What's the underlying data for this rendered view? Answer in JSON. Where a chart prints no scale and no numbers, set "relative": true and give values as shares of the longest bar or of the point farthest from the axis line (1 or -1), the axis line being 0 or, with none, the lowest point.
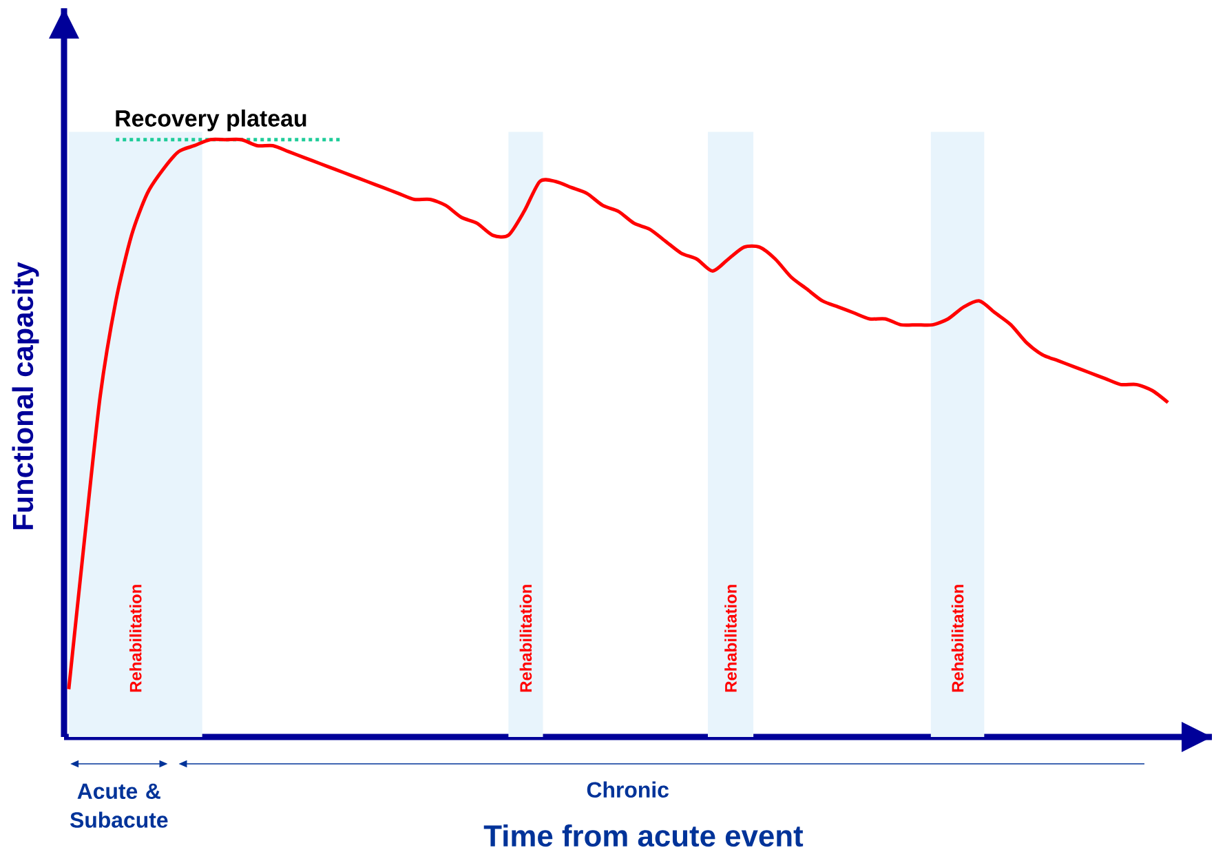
{
  "chart_data": {
    "type": "line",
    "relative": true,
    "xlabel": "Time from acute event",
    "ylabel": "Functional capacity",
    "categories": [
      null,
      null,
      null,
      null,
      null,
      null,
      null,
      null,
      null,
      null,
      null,
      null,
      null,
      null,
      null,
      null,
      null,
      null,
      null,
      null,
      null,
      null,
      null,
      null,
      null,
      null,
      null,
      null,
      null,
      null,
      null,
      null,
      null,
      null,
      null,
      null,
      null,
      null,
      null,
      null,
      null,
      null,
      null,
      null,
      null,
      null,
      null,
      null,
      null,
      null,
      null,
      null,
      null,
      null,
      null,
      null,
      null,
      null,
      null,
      null,
      null,
      null,
      null,
      null,
      null,
      null,
      null,
      null,
      null,
      null,
      null
    ],
    "series": [
      {
        "color": "#ff0000",
        "values": [
          0.08,
          0.33,
          0.57,
          0.73,
          0.84,
          0.91,
          0.95,
          0.98,
          0.99,
          1.0,
          1.0,
          1.0,
          0.99,
          0.99,
          0.98,
          0.97,
          0.96,
          0.95,
          0.94,
          0.93,
          0.92,
          0.91,
          0.9,
          0.9,
          0.89,
          0.87,
          0.86,
          0.84,
          0.84,
          0.88,
          0.93,
          0.93,
          0.92,
          0.91,
          0.89,
          0.88,
          0.86,
          0.85,
          0.83,
          0.81,
          0.8,
          0.78,
          0.8,
          0.82,
          0.82,
          0.8,
          0.77,
          0.75,
          0.73,
          0.72,
          0.71,
          0.7,
          0.7,
          0.69,
          0.69,
          0.69,
          0.7,
          0.72,
          0.73,
          0.71,
          0.69,
          0.66,
          0.64,
          0.63,
          0.62,
          0.61,
          0.6,
          0.59,
          0.59,
          0.58,
          0.56
        ]
      }
    ],
    "ref_lines": [
      {
        "axis": "y",
        "value": 1.0,
        "label": "Recovery plateau",
        "color": "#1fcc99",
        "line_style": "dotted"
      }
    ],
    "annotations": [
      "Acute & Subacute",
      "Chronic",
      "Rehabilitation",
      "Rehabilitation",
      "Rehabilitation",
      "Rehabilitation"
    ]
  }
}
